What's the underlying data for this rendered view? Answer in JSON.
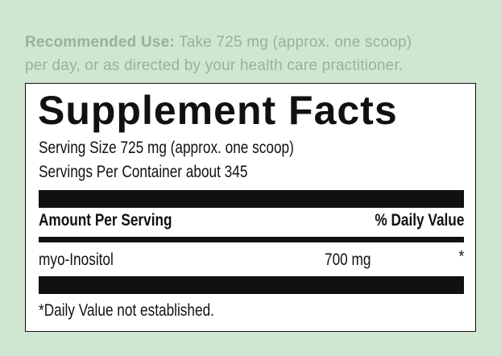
{
  "recommended_use": {
    "label": "Recommended Use:",
    "lines": [
      "Take 725 mg (approx. one scoop)",
      "per day, or as directed by your health care practitioner."
    ]
  },
  "label": {
    "title": "Supplement Facts",
    "serving_size": "Serving Size 725 mg (approx. one scoop)",
    "servings_per_container": "Servings Per Container about 345",
    "header": [
      "Amount Per Serving",
      "% Daily Value"
    ],
    "rows": [
      [
        "myo-Inositol",
        "700 mg",
        "*"
      ]
    ],
    "footnote": "*Daily Value not established."
  }
}
